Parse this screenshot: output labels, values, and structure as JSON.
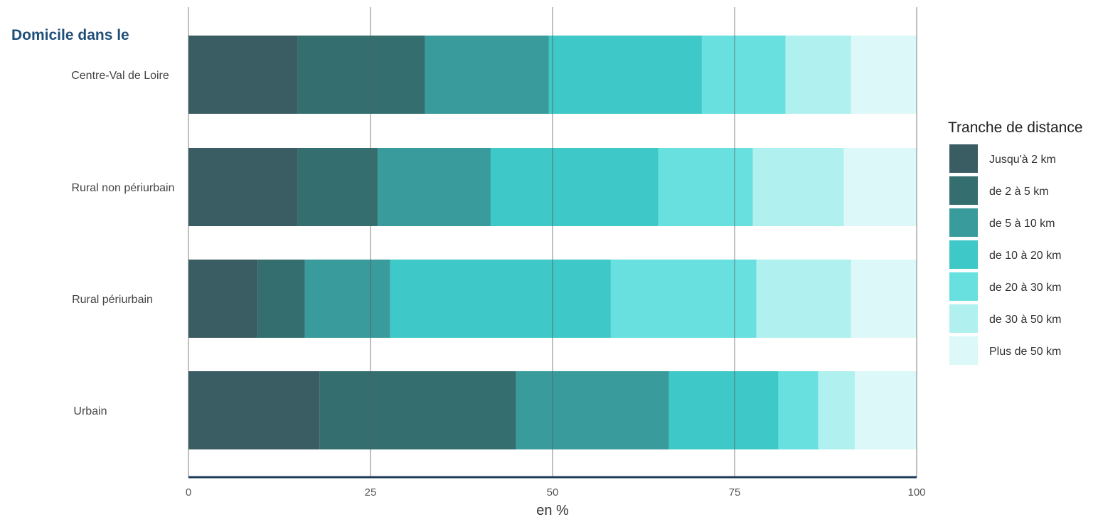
{
  "chart_data": {
    "type": "bar",
    "orientation": "horizontal",
    "stacked": true,
    "title": "Domicile dans le",
    "xlabel": "en %",
    "xlim": [
      0,
      100
    ],
    "xticks": [
      "0",
      "25",
      "50",
      "75",
      "100"
    ],
    "grid": "vertical major",
    "categories": [
      "Centre-Val de Loire",
      "Rural non périurbain",
      "Rural périurbain",
      "Urbain"
    ],
    "legend_title": "Tranche de distance",
    "legend_position": "right",
    "series": [
      {
        "name": "Jusqu'à 2 km",
        "color": "#3a5c63",
        "values": [
          15.0,
          15.0,
          9.5,
          18.0
        ]
      },
      {
        "name": "de 2 à 5 km",
        "color": "#356e6e",
        "values": [
          17.5,
          11.0,
          6.5,
          27.0
        ]
      },
      {
        "name": "de 5 à 10 km",
        "color": "#3a9b9c",
        "values": [
          17.0,
          15.5,
          11.7,
          21.0
        ]
      },
      {
        "name": "de 10 à 20 km",
        "color": "#3ec8c7",
        "values": [
          21.0,
          23.0,
          30.3,
          15.0
        ]
      },
      {
        "name": "de 20 à 30 km",
        "color": "#68e0df",
        "values": [
          11.5,
          13.0,
          20.0,
          5.5
        ]
      },
      {
        "name": "de 30 à 50 km",
        "color": "#b0f1f0",
        "values": [
          9.0,
          12.5,
          13.0,
          5.0
        ]
      },
      {
        "name": "Plus de 50 km",
        "color": "#dcf8f8",
        "values": [
          9.0,
          10.0,
          9.0,
          8.5
        ]
      }
    ]
  }
}
